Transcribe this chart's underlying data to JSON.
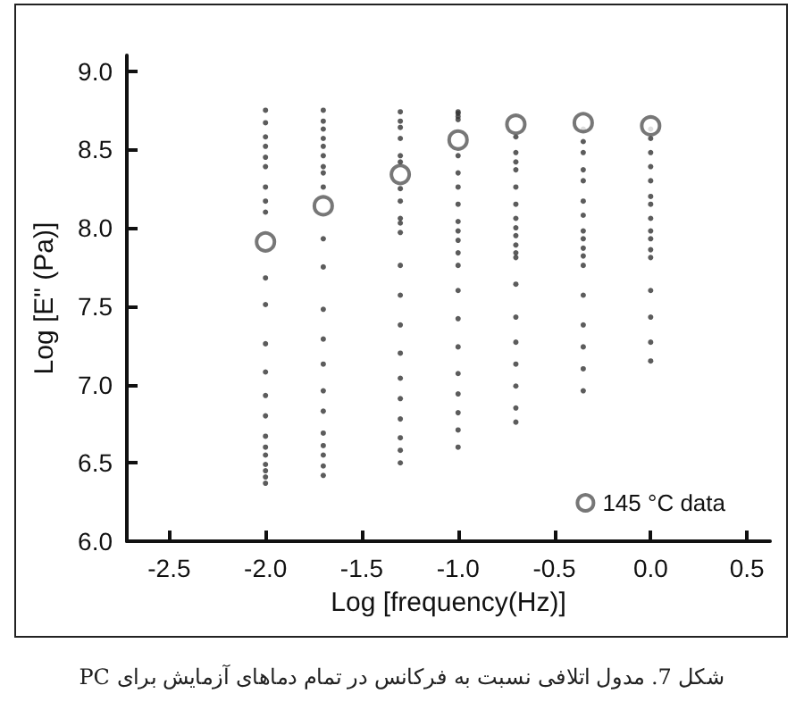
{
  "chart_data": {
    "type": "scatter",
    "xlabel": "Log [frequency(Hz)]",
    "ylabel": "Log [E\" (Pa)]",
    "annotations": [
      "شکل 7. مدول اتلافی نسبت به فرکانس در تمام دماهای آزمایش برای PC"
    ],
    "series": [
      {
        "color": "#333333",
        "marker": "circle",
        "x": [
          -2,
          -2,
          -2,
          -2,
          -2,
          -2,
          -2,
          -2,
          -2,
          -2,
          -2,
          -2,
          -2,
          -2,
          -2,
          -2,
          -2,
          -2,
          -2,
          -2,
          -2,
          -2,
          -1.7,
          -1.7,
          -1.7,
          -1.7,
          -1.7,
          -1.7,
          -1.7,
          -1.7,
          -1.7,
          -1.7,
          -1.7,
          -1.7,
          -1.7,
          -1.7,
          -1.7,
          -1.7,
          -1.7,
          -1.7,
          -1.7,
          -1.7,
          -1.7,
          -1.3,
          -1.3,
          -1.3,
          -1.3,
          -1.3,
          -1.3,
          -1.3,
          -1.3,
          -1.3,
          -1.3,
          -1.3,
          -1.3,
          -1.3,
          -1.3,
          -1.3,
          -1.3,
          -1.3,
          -1.3,
          -1.3,
          -1.3,
          -1.3,
          -1,
          -1,
          -1,
          -1,
          -1,
          -1,
          -1,
          -1,
          -1,
          -1,
          -1,
          -1,
          -1,
          -1,
          -1,
          -1,
          -1,
          -1,
          -1,
          -1,
          -1,
          -0.7,
          -0.7,
          -0.7,
          -0.7,
          -0.7,
          -0.7,
          -0.7,
          -0.7,
          -0.7,
          -0.7,
          -0.7,
          -0.7,
          -0.7,
          -0.7,
          -0.7,
          -0.7,
          -0.7,
          -0.7,
          -0.7,
          -0.35,
          -0.35,
          -0.35,
          -0.35,
          -0.35,
          -0.35,
          -0.35,
          -0.35,
          -0.35,
          -0.35,
          -0.35,
          -0.35,
          -0.35,
          -0.35,
          -0.35,
          -0.35,
          -0.35,
          0,
          0,
          0,
          0,
          0,
          0,
          0,
          0,
          0,
          0,
          0,
          0,
          0,
          0,
          0,
          0
        ],
        "values": [
          8.75,
          8.67,
          8.58,
          8.52,
          8.45,
          8.39,
          8.26,
          8.17,
          8.1,
          7.68,
          7.51,
          7.26,
          7.08,
          6.93,
          6.8,
          6.67,
          6.6,
          6.55,
          6.49,
          6.45,
          6.41,
          6.37,
          8.75,
          8.68,
          8.63,
          8.57,
          8.52,
          8.46,
          8.39,
          8.35,
          8.26,
          7.93,
          7.75,
          7.48,
          7.29,
          7.13,
          6.96,
          6.83,
          6.69,
          6.61,
          6.55,
          6.48,
          6.42,
          8.74,
          8.68,
          8.64,
          8.57,
          8.46,
          8.42,
          8.25,
          8.17,
          8.06,
          8.03,
          7.97,
          7.76,
          7.57,
          7.38,
          7.2,
          7.04,
          6.91,
          6.78,
          6.66,
          6.58,
          6.5,
          8.74,
          8.73,
          8.71,
          8.69,
          8.46,
          8.35,
          8.26,
          8.15,
          8.04,
          7.98,
          7.92,
          7.84,
          7.76,
          7.6,
          7.42,
          7.24,
          7.07,
          6.94,
          6.82,
          6.71,
          6.6,
          8.58,
          8.48,
          8.42,
          8.37,
          8.26,
          8.15,
          8.06,
          8.0,
          7.95,
          7.89,
          7.84,
          7.81,
          7.64,
          7.43,
          7.27,
          7.13,
          6.99,
          6.85,
          6.76,
          8.63,
          8.55,
          8.48,
          8.37,
          8.3,
          8.17,
          8.08,
          7.98,
          7.93,
          7.87,
          7.82,
          7.76,
          7.57,
          7.38,
          7.24,
          7.1,
          6.96,
          8.63,
          8.57,
          8.48,
          8.39,
          8.3,
          8.2,
          8.15,
          8.06,
          7.98,
          7.93,
          7.86,
          7.81,
          7.6,
          7.43,
          7.27,
          7.15
        ]
      },
      {
        "name": "145 °C data",
        "color": "#555555",
        "marker": "circle",
        "x": [
          -2,
          -1.7,
          -1.3,
          -1,
          -0.7,
          -0.35,
          0
        ],
        "values": [
          7.91,
          8.14,
          8.34,
          8.56,
          8.66,
          8.67,
          8.65
        ]
      }
    ],
    "xlim": [
      -2.72,
      0.62
    ],
    "xticks": [
      -2.5,
      {
        "value": -2,
        "label": "-2.0"
      },
      -1.5,
      {
        "value": -1,
        "label": "-1.0"
      },
      -0.5,
      {
        "value": 0,
        "label": "0.0"
      },
      0.5
    ],
    "ylim": [
      6,
      9.1
    ],
    "yticks": [
      {
        "value": 6,
        "label": "6.0"
      },
      6.5,
      {
        "value": 7,
        "label": "7.0"
      },
      7.5,
      {
        "value": 8,
        "label": "8.0"
      },
      8.5,
      {
        "value": 9,
        "label": "9.0"
      }
    ],
    "grid": false,
    "legend": "bottom right"
  }
}
